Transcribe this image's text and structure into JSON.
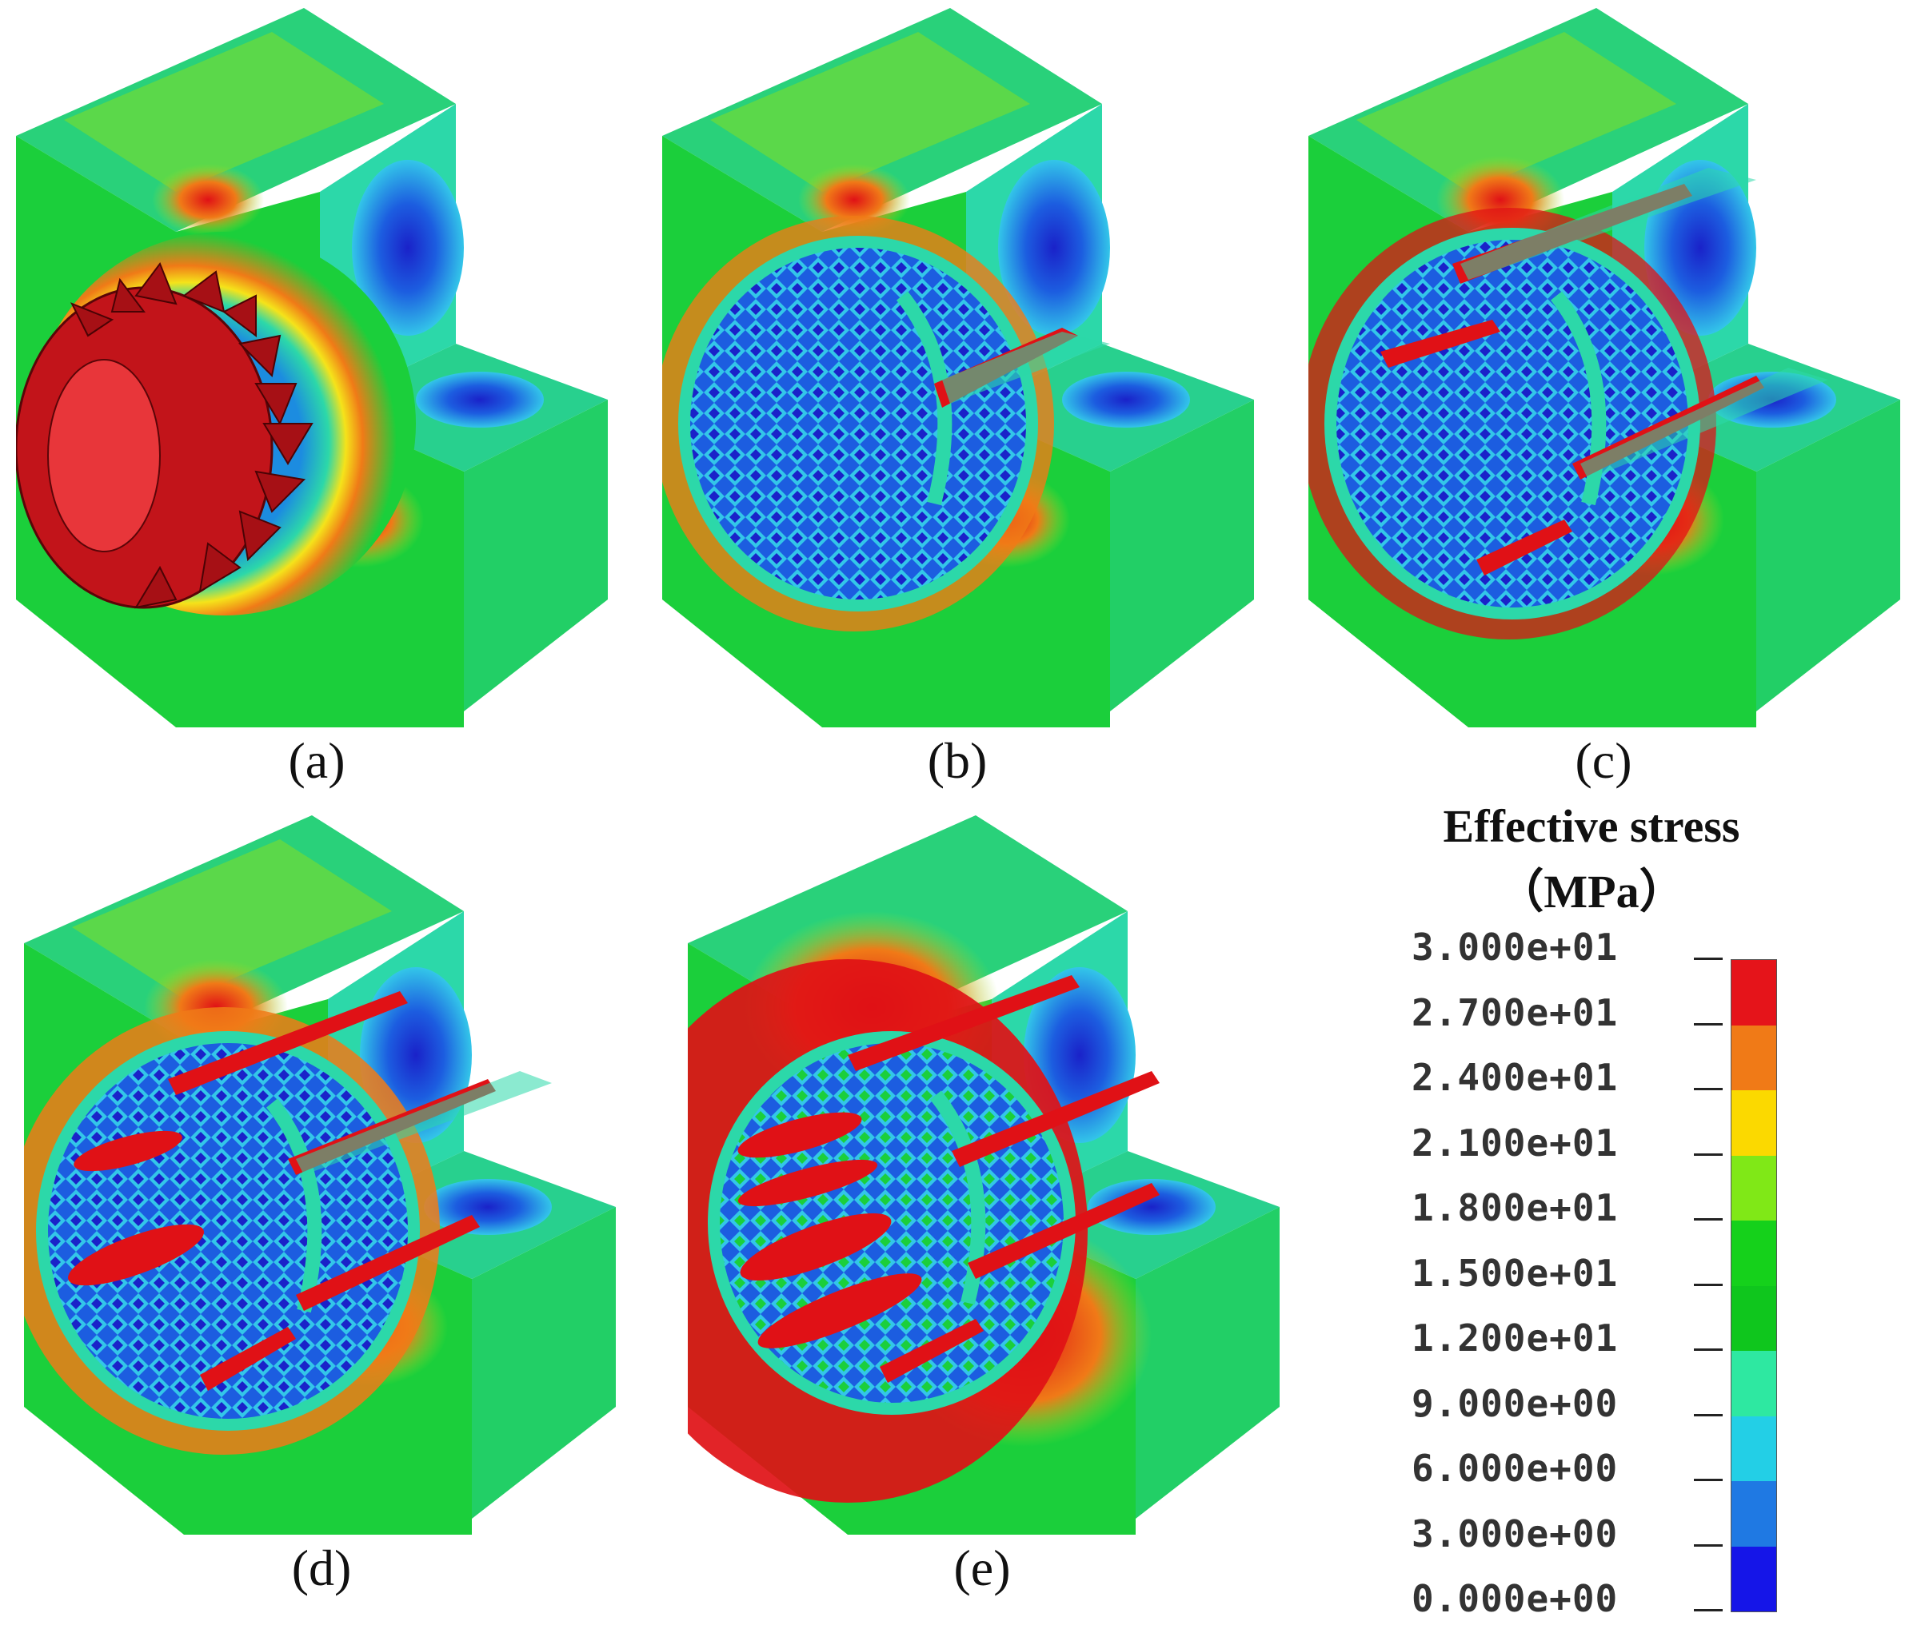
{
  "panels": [
    {
      "label": "(a)",
      "cutter": true,
      "cracks": 1
    },
    {
      "label": "(b)",
      "cutter": false,
      "cracks": 1
    },
    {
      "label": "(c)",
      "cutter": false,
      "cracks": 2
    },
    {
      "label": "(d)",
      "cutter": false,
      "cracks": 3
    },
    {
      "label": "(e)",
      "cutter": false,
      "cracks": 4
    }
  ],
  "legend": {
    "title_line1": "Effective stress",
    "title_line2": "（MPa）",
    "ticks": [
      "3.000e+01",
      "2.700e+01",
      "2.400e+01",
      "2.100e+01",
      "1.800e+01",
      "1.500e+01",
      "1.200e+01",
      "9.000e+00",
      "6.000e+00",
      "3.000e+00",
      "0.000e+00"
    ],
    "colors": [
      "#e5141a",
      "#f07a17",
      "#fbd900",
      "#80e817",
      "#15d11b",
      "#0fc61d",
      "#2ee8a1",
      "#23cfe6",
      "#1f79e3",
      "#1515e8"
    ]
  },
  "colors": {
    "base_green": "#1bcf3b",
    "teal": "#2cd8a9",
    "cyan": "#33c6e9",
    "blue": "#1c5de0",
    "dark_blue": "#1a22c9",
    "orange": "#f07a17",
    "red": "#e01116",
    "yellow": "#f5e31a",
    "cutter_red": "#c2141a"
  }
}
